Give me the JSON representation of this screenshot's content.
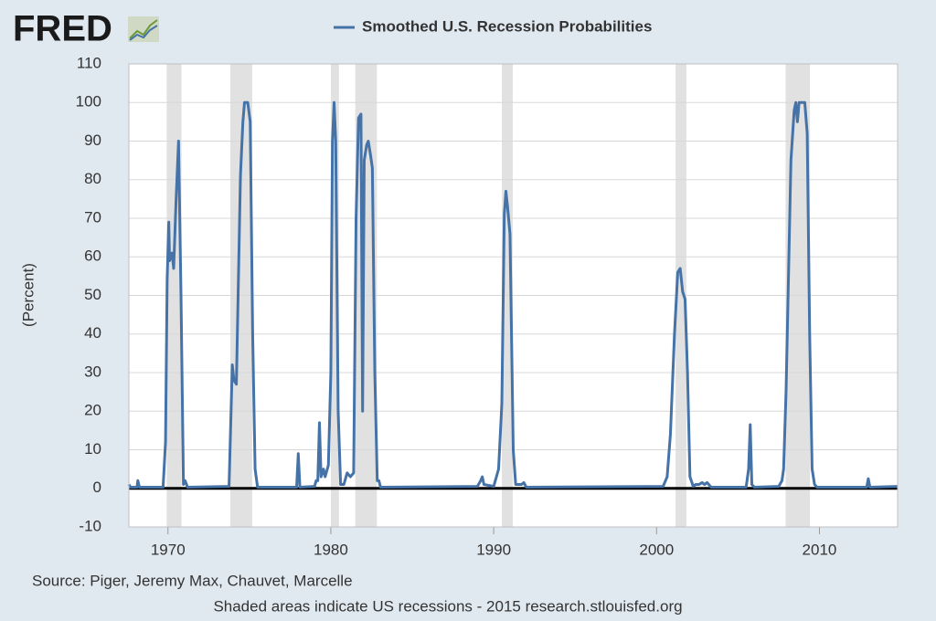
{
  "logo": "FRED",
  "chart_data": {
    "type": "line",
    "y_label": "(Percent)",
    "source": "Source: Piger, Jeremy Max, Chauvet, Marcelle",
    "note": "Shaded areas indicate US recessions - 2015 research.stlouisfed.org",
    "xlim": [
      1967.6,
      2014.8
    ],
    "xticks": [
      1970,
      1980,
      1990,
      2000,
      2010
    ],
    "ylim": [
      -10,
      110
    ],
    "yticks": [
      -10,
      0,
      10,
      20,
      30,
      40,
      50,
      60,
      70,
      80,
      90,
      100,
      110
    ],
    "grid": true,
    "recession_color": "#e1e1e1",
    "recessions": [
      [
        1969.92,
        1970.83
      ],
      [
        1973.83,
        1975.17
      ],
      [
        1980.0,
        1980.5
      ],
      [
        1981.5,
        1982.83
      ],
      [
        1990.5,
        1991.17
      ],
      [
        2001.17,
        2001.83
      ],
      [
        2007.92,
        2009.42
      ]
    ],
    "x": [
      1967.6,
      1967.7,
      1968.1,
      1968.15,
      1968.25,
      1969.7,
      1969.85,
      1969.95,
      1970.05,
      1970.1,
      1970.25,
      1970.35,
      1970.5,
      1970.65,
      1970.8,
      1970.95,
      1971.05,
      1971.2,
      1973.75,
      1973.95,
      1974.05,
      1974.2,
      1974.45,
      1974.6,
      1974.7,
      1974.9,
      1975.05,
      1975.2,
      1975.35,
      1975.5,
      1977.9,
      1978.0,
      1978.1,
      1979.0,
      1979.1,
      1979.2,
      1979.3,
      1979.4,
      1979.55,
      1979.65,
      1979.85,
      1980.0,
      1980.1,
      1980.2,
      1980.3,
      1980.45,
      1980.6,
      1980.8,
      1981.0,
      1981.2,
      1981.4,
      1981.55,
      1981.7,
      1981.85,
      1981.95,
      1982.05,
      1982.2,
      1982.3,
      1982.45,
      1982.55,
      1982.7,
      1982.85,
      1982.95,
      1983.05,
      1989.0,
      1989.2,
      1989.3,
      1989.4,
      1990.0,
      1990.3,
      1990.5,
      1990.65,
      1990.75,
      1990.85,
      1991.0,
      1991.2,
      1991.35,
      1991.7,
      1991.85,
      1992.0,
      2000.4,
      2000.65,
      2000.85,
      2001.1,
      2001.3,
      2001.45,
      2001.6,
      2001.75,
      2001.9,
      2002.05,
      2002.25,
      2002.4,
      2002.6,
      2002.8,
      2002.95,
      2003.1,
      2003.35,
      2005.5,
      2005.65,
      2005.75,
      2005.85,
      2006.0,
      2007.5,
      2007.7,
      2007.8,
      2007.95,
      2008.1,
      2008.25,
      2008.45,
      2008.55,
      2008.65,
      2008.75,
      2008.95,
      2009.1,
      2009.25,
      2009.4,
      2009.55,
      2009.7,
      2009.85,
      2012.9,
      2013.0,
      2013.1,
      2014.8
    ],
    "series": [
      {
        "name": "Smoothed U.S. Recession Probabilities",
        "color": "#4572a7",
        "values": [
          1,
          0.3,
          0.3,
          2,
          0.3,
          0.3,
          12,
          54,
          69,
          59,
          61,
          57,
          75,
          90,
          50,
          1,
          2,
          0.3,
          0.5,
          32,
          28,
          27,
          81,
          95,
          100,
          100,
          95,
          40,
          5,
          0.3,
          0.3,
          9,
          0.3,
          0.5,
          2,
          2,
          17,
          3,
          5,
          3,
          6,
          30,
          90,
          100,
          90,
          20,
          1,
          1,
          4,
          3,
          4,
          70,
          96,
          97,
          20,
          85,
          89,
          90,
          86,
          83,
          30,
          2,
          2,
          0.3,
          0.5,
          2,
          3,
          1,
          0.5,
          5,
          22,
          71,
          77,
          73,
          66,
          10,
          1,
          1,
          1.5,
          0.3,
          0.5,
          3,
          14,
          40,
          56,
          57,
          51,
          49,
          30,
          3,
          0.5,
          1,
          1,
          1.5,
          1,
          1.5,
          0.3,
          0.3,
          5,
          16.5,
          1,
          0.3,
          0.5,
          2,
          5,
          25,
          55,
          85,
          98,
          100,
          95,
          100,
          100,
          100,
          92,
          40,
          5,
          1,
          0.3,
          0.3,
          2.5,
          0.3,
          0.5
        ]
      }
    ]
  }
}
